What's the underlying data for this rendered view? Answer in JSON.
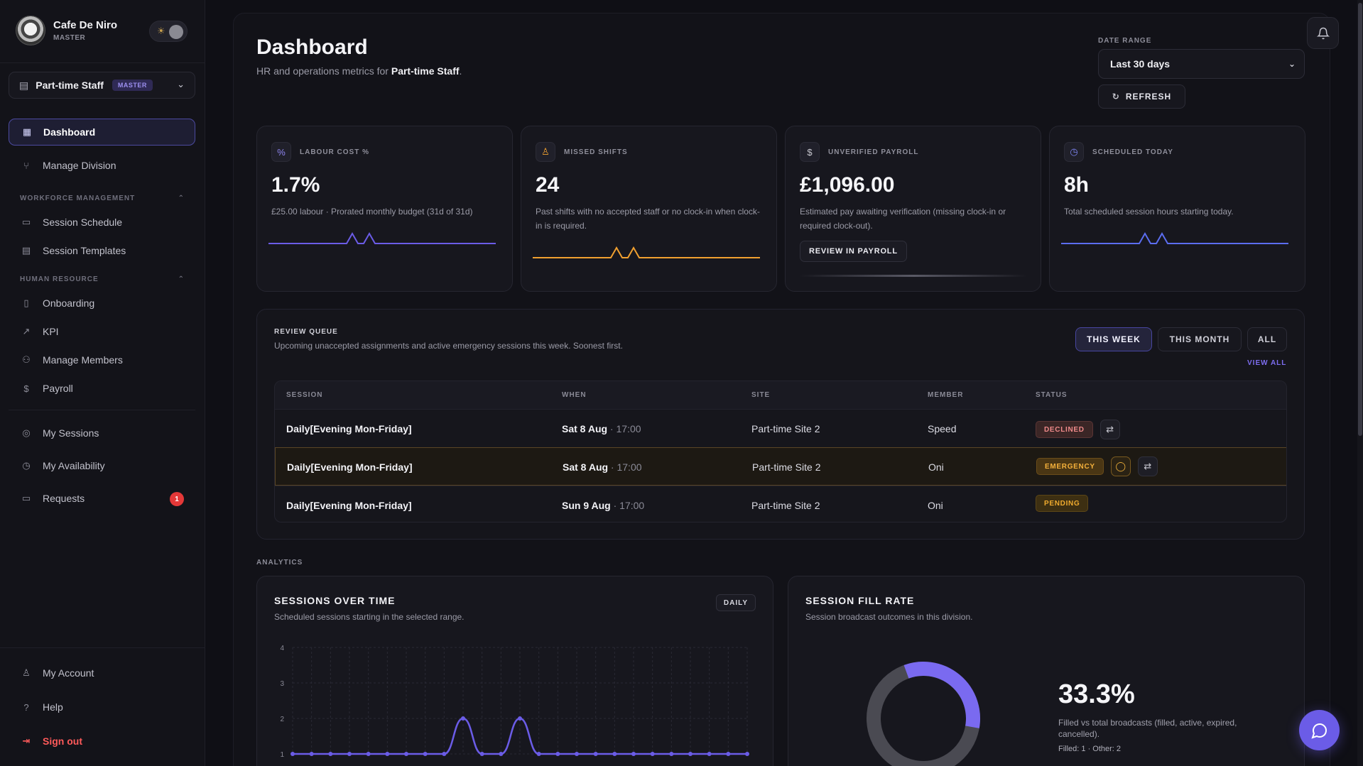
{
  "brand": {
    "name": "Cafe De Niro",
    "role": "MASTER",
    "theme_icon": "☀"
  },
  "division": {
    "label": "Part-time Staff",
    "badge": "MASTER"
  },
  "nav": {
    "dashboard": "Dashboard",
    "manage_division": "Manage Division",
    "workforce_header": "WORKFORCE MANAGEMENT",
    "session_schedule": "Session Schedule",
    "session_templates": "Session Templates",
    "hr_header": "HUMAN RESOURCE",
    "onboarding": "Onboarding",
    "kpi": "KPI",
    "manage_members": "Manage Members",
    "payroll": "Payroll",
    "my_sessions": "My Sessions",
    "my_availability": "My Availability",
    "requests": "Requests",
    "requests_count": "1",
    "my_account": "My Account",
    "help": "Help",
    "sign_out": "Sign out"
  },
  "header": {
    "title": "Dashboard",
    "subtitle_prefix": "HR and operations metrics for ",
    "subtitle_strong": "Part-time Staff",
    "subtitle_suffix": ".",
    "date_range_label": "DATE RANGE",
    "date_range_value": "Last 30 days",
    "refresh_label": "REFRESH"
  },
  "cards": [
    {
      "label": "LABOUR COST %",
      "value": "1.7%",
      "desc": "£25.00 labour · Prorated monthly budget (31d of 31d)",
      "color": "#6b5ce7"
    },
    {
      "label": "MISSED SHIFTS",
      "value": "24",
      "desc": "Past shifts with no accepted staff or no clock-in when clock-in is required.",
      "color": "#f0a030"
    },
    {
      "label": "UNVERIFIED PAYROLL",
      "value": "£1,096.00",
      "desc": "Estimated pay awaiting verification (missing clock-in or required clock-out).",
      "button": "REVIEW IN PAYROLL"
    },
    {
      "label": "SCHEDULED TODAY",
      "value": "8h",
      "desc": "Total scheduled session hours starting today.",
      "color": "#5b6df0"
    }
  ],
  "queue": {
    "title": "REVIEW QUEUE",
    "subtitle": "Upcoming unaccepted assignments and active emergency sessions this week. Soonest first.",
    "tabs": [
      "THIS WEEK",
      "THIS MONTH",
      "ALL"
    ],
    "view_all": "VIEW ALL",
    "columns": [
      "SESSION",
      "WHEN",
      "SITE",
      "MEMBER",
      "STATUS"
    ],
    "rows": [
      {
        "session": "Daily[Evening Mon-Friday]",
        "date": "Sat 8 Aug",
        "time": " · 17:00",
        "site": "Part-time Site 2",
        "member": "Speed",
        "status": "DECLINED"
      },
      {
        "session": "Daily[Evening Mon-Friday]",
        "date": "Sat 8 Aug",
        "time": " · 17:00",
        "site": "Part-time Site 2",
        "member": "Oni",
        "status": "EMERGENCY"
      },
      {
        "session": "Daily[Evening Mon-Friday]",
        "date": "Sun 9 Aug",
        "time": " · 17:00",
        "site": "Part-time Site 2",
        "member": "Oni",
        "status": "PENDING"
      }
    ]
  },
  "analytics": {
    "header": "ANALYTICS",
    "sessions_title": "SESSIONS OVER TIME",
    "sessions_sub": "Scheduled sessions starting in the selected range.",
    "granularity": "DAILY",
    "fill_title": "SESSION FILL RATE",
    "fill_sub": "Session broadcast outcomes in this division.",
    "fill_value": "33.3%",
    "fill_desc": "Filled vs total broadcasts (filled, active, expired, cancelled).",
    "fill_counts": "Filled: 1 · Other: 2"
  },
  "chart_data": [
    {
      "type": "line",
      "title": "SESSIONS OVER TIME",
      "y_ticks": [
        "1",
        "2",
        "3",
        "4"
      ],
      "ylim": [
        1,
        4
      ],
      "series": [
        {
          "values": [
            1,
            1,
            1,
            1,
            1,
            1,
            1,
            1,
            1,
            2,
            1,
            1,
            2,
            1,
            1,
            1,
            1,
            1,
            1,
            1,
            1,
            1,
            1,
            1,
            1
          ],
          "color": "#6b5ce7"
        }
      ]
    },
    {
      "type": "pie",
      "title": "SESSION FILL RATE",
      "series": [
        {
          "values": [
            1,
            2
          ],
          "colors": [
            "#7a6af0",
            "#4a4a52"
          ]
        }
      ]
    }
  ]
}
